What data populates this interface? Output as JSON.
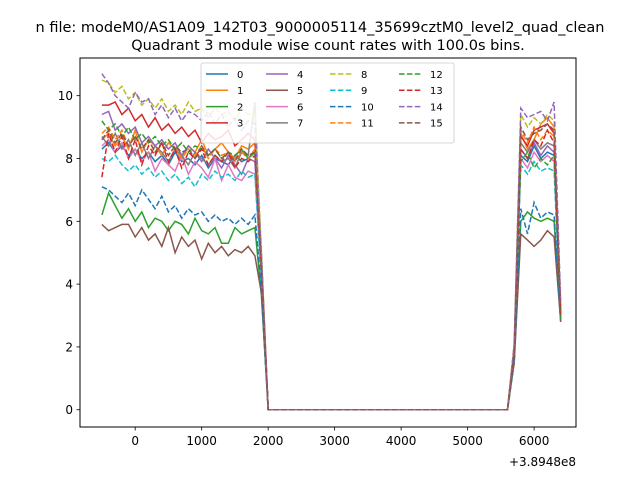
{
  "chart_data": {
    "type": "line",
    "suptitle": "n file: modeM0/AS1A09_142T03_9000005114_35699cztM0_level2_quad_clean",
    "title": "Quadrant 3 module wise count rates with 100.0s bins.",
    "xlabel": "",
    "ylabel": "",
    "x_offset_label": "+3.8948e8",
    "xlim": [
      -830,
      6630
    ],
    "ylim": [
      -0.55,
      11.2
    ],
    "xticks": [
      0,
      1000,
      2000,
      3000,
      4000,
      5000,
      6000
    ],
    "yticks": [
      0,
      2,
      4,
      6,
      8,
      10
    ],
    "grid": false,
    "legend": {
      "placement": "top-center",
      "ncol": 4
    },
    "x": [
      -500,
      -400,
      -300,
      -200,
      -100,
      0,
      100,
      200,
      300,
      400,
      500,
      600,
      700,
      800,
      900,
      1000,
      1100,
      1200,
      1300,
      1400,
      1500,
      1600,
      1700,
      1800,
      1900,
      2000,
      2100,
      2200,
      2300,
      2400,
      2500,
      2600,
      2700,
      2800,
      2900,
      3000,
      3100,
      3200,
      3300,
      3400,
      3500,
      3600,
      3700,
      3800,
      3900,
      4000,
      4100,
      4200,
      4300,
      4400,
      4500,
      4600,
      4700,
      4800,
      4900,
      5000,
      5100,
      5200,
      5300,
      5400,
      5500,
      5600,
      5700,
      5800,
      5900,
      6000,
      6100,
      6200,
      6300,
      6400
    ],
    "series": [
      {
        "name": "0",
        "color": "#1f77b4",
        "dash": "solid",
        "values": [
          8.3,
          8.5,
          8.2,
          8.4,
          8.1,
          8.3,
          8.0,
          8.2,
          7.9,
          8.1,
          7.8,
          8.2,
          7.9,
          8.0,
          7.8,
          8.1,
          7.7,
          8.0,
          7.9,
          7.8,
          8.1,
          7.9,
          8.0,
          8.2,
          4.5,
          0,
          0,
          0,
          0,
          0,
          0,
          0,
          0,
          0,
          0,
          0,
          0,
          0,
          0,
          0,
          0,
          0,
          0,
          0,
          0,
          0,
          0,
          0,
          0,
          0,
          0,
          0,
          0,
          0,
          0,
          0,
          0,
          0,
          0,
          0,
          0,
          0,
          1.8,
          8.1,
          7.9,
          8.4,
          8.0,
          8.2,
          8.1,
          2.9
        ]
      },
      {
        "name": "1",
        "color": "#ff7f0e",
        "dash": "solid",
        "values": [
          8.6,
          8.8,
          8.4,
          8.7,
          8.3,
          8.9,
          8.2,
          8.6,
          8.4,
          8.1,
          8.5,
          8.3,
          8.0,
          8.4,
          8.2,
          8.6,
          8.1,
          8.3,
          8.5,
          8.2,
          8.0,
          8.4,
          8.3,
          8.5,
          4.6,
          0,
          0,
          0,
          0,
          0,
          0,
          0,
          0,
          0,
          0,
          0,
          0,
          0,
          0,
          0,
          0,
          0,
          0,
          0,
          0,
          0,
          0,
          0,
          0,
          0,
          0,
          0,
          0,
          0,
          0,
          0,
          0,
          0,
          0,
          0,
          0,
          0,
          1.9,
          8.8,
          8.3,
          8.6,
          9.1,
          9.3,
          9.0,
          3.0
        ]
      },
      {
        "name": "2",
        "color": "#2ca02c",
        "dash": "solid",
        "values": [
          6.2,
          6.9,
          6.5,
          6.1,
          6.4,
          6.0,
          6.3,
          5.8,
          6.1,
          6.0,
          5.7,
          6.0,
          5.9,
          5.6,
          6.1,
          5.7,
          5.6,
          5.8,
          5.3,
          5.3,
          5.8,
          5.6,
          5.7,
          5.8,
          3.6,
          0,
          0,
          0,
          0,
          0,
          0,
          0,
          0,
          0,
          0,
          0,
          0,
          0,
          0,
          0,
          0,
          0,
          0,
          0,
          0,
          0,
          0,
          0,
          0,
          0,
          0,
          0,
          0,
          0,
          0,
          0,
          0,
          0,
          0,
          0,
          0,
          0,
          1.5,
          6.0,
          6.3,
          6.1,
          6.0,
          6.1,
          6.0,
          2.8
        ]
      },
      {
        "name": "3",
        "color": "#d62728",
        "dash": "solid",
        "values": [
          9.7,
          9.7,
          9.8,
          9.4,
          9.6,
          9.2,
          9.4,
          9.0,
          9.3,
          8.9,
          9.1,
          8.8,
          9.0,
          8.7,
          8.9,
          8.5,
          8.8,
          8.6,
          8.7,
          8.9,
          8.4,
          8.6,
          8.8,
          8.6,
          4.8,
          0,
          0,
          0,
          0,
          0,
          0,
          0,
          0,
          0,
          0,
          0,
          0,
          0,
          0,
          0,
          0,
          0,
          0,
          0,
          0,
          0,
          0,
          0,
          0,
          0,
          0,
          0,
          0,
          0,
          0,
          0,
          0,
          0,
          0,
          0,
          0,
          0,
          2.0,
          8.7,
          8.4,
          8.9,
          9.0,
          9.1,
          8.8,
          3.2
        ]
      },
      {
        "name": "4",
        "color": "#9467bd",
        "dash": "solid",
        "values": [
          9.4,
          9.5,
          8.9,
          9.1,
          8.8,
          9.0,
          8.5,
          8.7,
          8.4,
          8.6,
          8.3,
          8.5,
          8.1,
          8.4,
          8.2,
          7.9,
          8.3,
          8.0,
          7.7,
          8.1,
          7.8,
          7.5,
          8.0,
          7.9,
          4.4,
          0,
          0,
          0,
          0,
          0,
          0,
          0,
          0,
          0,
          0,
          0,
          0,
          0,
          0,
          0,
          0,
          0,
          0,
          0,
          0,
          0,
          0,
          0,
          0,
          0,
          0,
          0,
          0,
          0,
          0,
          0,
          0,
          0,
          0,
          0,
          0,
          0,
          1.8,
          8.3,
          8.0,
          8.5,
          8.1,
          8.4,
          8.2,
          2.9
        ]
      },
      {
        "name": "5",
        "color": "#8c564b",
        "dash": "solid",
        "values": [
          5.9,
          5.7,
          5.8,
          5.9,
          5.9,
          5.5,
          5.8,
          5.4,
          5.6,
          5.2,
          5.8,
          5.0,
          5.5,
          5.2,
          5.4,
          4.8,
          5.3,
          5.0,
          5.2,
          4.9,
          5.1,
          5.0,
          5.2,
          4.9,
          3.7,
          0,
          0,
          0,
          0,
          0,
          0,
          0,
          0,
          0,
          0,
          0,
          0,
          0,
          0,
          0,
          0,
          0,
          0,
          0,
          0,
          0,
          0,
          0,
          0,
          0,
          0,
          0,
          0,
          0,
          0,
          0,
          0,
          0,
          0,
          0,
          0,
          0,
          1.5,
          5.6,
          5.4,
          5.2,
          5.4,
          5.7,
          5.5,
          2.8
        ]
      },
      {
        "name": "6",
        "color": "#e377c2",
        "dash": "solid",
        "values": [
          8.4,
          8.6,
          8.2,
          8.5,
          8.0,
          8.3,
          7.9,
          8.2,
          7.6,
          8.0,
          7.8,
          7.6,
          8.1,
          7.5,
          7.9,
          7.7,
          7.4,
          8.0,
          7.3,
          7.8,
          7.4,
          7.3,
          7.6,
          7.5,
          4.2,
          0,
          0,
          0,
          0,
          0,
          0,
          0,
          0,
          0,
          0,
          0,
          0,
          0,
          0,
          0,
          0,
          0,
          0,
          0,
          0,
          0,
          0,
          0,
          0,
          0,
          0,
          0,
          0,
          0,
          0,
          0,
          0,
          0,
          0,
          0,
          0,
          0,
          1.7,
          8.0,
          7.7,
          8.2,
          7.9,
          8.1,
          7.9,
          2.9
        ]
      },
      {
        "name": "7",
        "color": "#7f7f7f",
        "dash": "solid",
        "values": [
          8.7,
          8.4,
          8.8,
          8.3,
          8.6,
          8.1,
          8.5,
          8.0,
          8.4,
          8.2,
          7.9,
          8.3,
          8.1,
          7.8,
          8.2,
          8.0,
          7.8,
          8.1,
          7.9,
          8.0,
          7.7,
          8.2,
          8.1,
          9.8,
          4.5,
          0,
          0,
          0,
          0,
          0,
          0,
          0,
          0,
          0,
          0,
          0,
          0,
          0,
          0,
          0,
          0,
          0,
          0,
          0,
          0,
          0,
          0,
          0,
          0,
          0,
          0,
          0,
          0,
          0,
          0,
          0,
          0,
          0,
          0,
          0,
          0,
          0,
          1.8,
          8.5,
          8.2,
          8.6,
          8.3,
          8.5,
          8.4,
          2.9
        ]
      },
      {
        "name": "8",
        "color": "#bcbd22",
        "dash": "dashed",
        "values": [
          10.5,
          10.4,
          10.1,
          10.3,
          9.9,
          10.1,
          9.7,
          9.9,
          9.6,
          9.9,
          9.5,
          9.7,
          9.4,
          9.8,
          9.5,
          9.6,
          9.3,
          9.6,
          9.4,
          9.5,
          9.2,
          9.6,
          9.4,
          9.5,
          5.0,
          0,
          0,
          0,
          0,
          0,
          0,
          0,
          0,
          0,
          0,
          0,
          0,
          0,
          0,
          0,
          0,
          0,
          0,
          0,
          0,
          0,
          0,
          0,
          0,
          0,
          0,
          0,
          0,
          0,
          0,
          0,
          0,
          0,
          0,
          0,
          0,
          0,
          2.1,
          9.4,
          9.0,
          9.3,
          9.1,
          9.4,
          9.2,
          3.3
        ]
      },
      {
        "name": "9",
        "color": "#17becf",
        "dash": "dashed",
        "values": [
          8.0,
          7.9,
          8.1,
          7.8,
          7.6,
          7.8,
          7.5,
          7.7,
          7.4,
          7.6,
          7.3,
          7.5,
          7.2,
          7.4,
          7.1,
          7.5,
          7.3,
          7.6,
          7.4,
          7.5,
          7.3,
          7.6,
          7.4,
          7.5,
          4.1,
          0,
          0,
          0,
          0,
          0,
          0,
          0,
          0,
          0,
          0,
          0,
          0,
          0,
          0,
          0,
          0,
          0,
          0,
          0,
          0,
          0,
          0,
          0,
          0,
          0,
          0,
          0,
          0,
          0,
          0,
          0,
          0,
          0,
          0,
          0,
          0,
          0,
          1.7,
          7.8,
          7.5,
          7.9,
          7.6,
          7.7,
          7.6,
          2.9
        ]
      },
      {
        "name": "10",
        "color": "#1f77b4",
        "dash": "dashed",
        "values": [
          7.1,
          7.0,
          6.8,
          6.6,
          6.9,
          6.5,
          7.0,
          6.7,
          6.4,
          6.8,
          6.3,
          6.5,
          6.1,
          6.4,
          6.2,
          6.3,
          6.0,
          6.2,
          6.0,
          6.1,
          5.9,
          6.1,
          5.9,
          6.2,
          3.8,
          0,
          0,
          0,
          0,
          0,
          0,
          0,
          0,
          0,
          0,
          0,
          0,
          0,
          0,
          0,
          0,
          0,
          0,
          0,
          0,
          0,
          0,
          0,
          0,
          0,
          0,
          0,
          0,
          0,
          0,
          0,
          0,
          0,
          0,
          0,
          0,
          0,
          1.6,
          6.4,
          5.6,
          6.6,
          6.1,
          6.3,
          6.2,
          2.9
        ]
      },
      {
        "name": "11",
        "color": "#ff7f0e",
        "dash": "dashed",
        "values": [
          8.8,
          9.0,
          8.6,
          8.9,
          8.4,
          8.7,
          8.3,
          8.6,
          8.2,
          8.5,
          8.1,
          8.4,
          8.0,
          8.3,
          8.1,
          8.4,
          8.0,
          8.3,
          8.1,
          8.2,
          7.9,
          8.2,
          8.0,
          8.3,
          4.6,
          0,
          0,
          0,
          0,
          0,
          0,
          0,
          0,
          0,
          0,
          0,
          0,
          0,
          0,
          0,
          0,
          0,
          0,
          0,
          0,
          0,
          0,
          0,
          0,
          0,
          0,
          0,
          0,
          0,
          0,
          0,
          0,
          0,
          0,
          0,
          0,
          0,
          1.9,
          8.9,
          8.5,
          9.0,
          8.6,
          8.9,
          8.7,
          3.1
        ]
      },
      {
        "name": "12",
        "color": "#2ca02c",
        "dash": "dashed",
        "values": [
          9.2,
          8.9,
          9.1,
          8.7,
          9.0,
          8.6,
          8.8,
          8.5,
          8.7,
          8.4,
          8.6,
          8.3,
          8.5,
          8.2,
          8.4,
          8.3,
          8.1,
          8.3,
          8.0,
          8.2,
          8.1,
          8.3,
          8.0,
          8.2,
          4.5,
          0,
          0,
          0,
          0,
          0,
          0,
          0,
          0,
          0,
          0,
          0,
          0,
          0,
          0,
          0,
          0,
          0,
          0,
          0,
          0,
          0,
          0,
          0,
          0,
          0,
          0,
          0,
          0,
          0,
          0,
          0,
          0,
          0,
          0,
          0,
          0,
          0,
          1.8,
          7.9,
          8.2,
          7.7,
          8.0,
          7.8,
          8.1,
          2.9
        ]
      },
      {
        "name": "13",
        "color": "#d62728",
        "dash": "dashed",
        "values": [
          7.4,
          8.8,
          8.2,
          8.7,
          8.0,
          8.6,
          7.8,
          8.4,
          8.1,
          8.5,
          7.9,
          8.3,
          7.7,
          8.2,
          8.0,
          8.3,
          7.8,
          8.1,
          7.9,
          8.2,
          7.7,
          8.0,
          7.9,
          8.1,
          4.4,
          0,
          0,
          0,
          0,
          0,
          0,
          0,
          0,
          0,
          0,
          0,
          0,
          0,
          0,
          0,
          0,
          0,
          0,
          0,
          0,
          0,
          0,
          0,
          0,
          0,
          0,
          0,
          0,
          0,
          0,
          0,
          0,
          0,
          0,
          0,
          0,
          0,
          1.8,
          8.3,
          8.0,
          8.6,
          8.4,
          8.9,
          8.5,
          3.0
        ]
      },
      {
        "name": "14",
        "color": "#9467bd",
        "dash": "dashed",
        "values": [
          10.7,
          10.4,
          10.0,
          9.8,
          9.6,
          10.1,
          9.8,
          9.9,
          9.4,
          9.7,
          9.3,
          9.6,
          9.2,
          9.5,
          9.4,
          9.2,
          9.5,
          9.1,
          9.4,
          9.0,
          9.3,
          8.9,
          9.2,
          9.1,
          4.9,
          0,
          0,
          0,
          0,
          0,
          0,
          0,
          0,
          0,
          0,
          0,
          0,
          0,
          0,
          0,
          0,
          0,
          0,
          0,
          0,
          0,
          0,
          0,
          0,
          0,
          0,
          0,
          0,
          0,
          0,
          0,
          0,
          0,
          0,
          0,
          0,
          0,
          2.1,
          9.6,
          9.3,
          9.4,
          9.5,
          9.2,
          9.8,
          3.4
        ]
      },
      {
        "name": "15",
        "color": "#8c564b",
        "dash": "dashed",
        "values": [
          8.6,
          8.9,
          8.5,
          8.8,
          8.4,
          8.7,
          8.3,
          8.6,
          8.2,
          8.5,
          8.1,
          8.4,
          8.2,
          8.3,
          8.0,
          8.4,
          8.1,
          8.3,
          8.0,
          8.2,
          7.9,
          8.3,
          8.1,
          8.2,
          4.5,
          0,
          0,
          0,
          0,
          0,
          0,
          0,
          0,
          0,
          0,
          0,
          0,
          0,
          0,
          0,
          0,
          0,
          0,
          0,
          0,
          0,
          0,
          0,
          0,
          0,
          0,
          0,
          0,
          0,
          0,
          0,
          0,
          0,
          0,
          0,
          0,
          0,
          1.8,
          9.0,
          8.6,
          8.8,
          8.9,
          9.1,
          8.9,
          3.0
        ]
      }
    ]
  }
}
